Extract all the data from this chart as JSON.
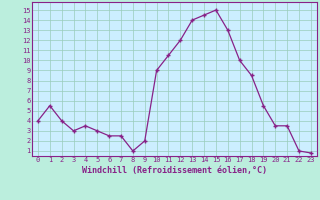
{
  "x": [
    0,
    1,
    2,
    3,
    4,
    5,
    6,
    7,
    8,
    9,
    10,
    11,
    12,
    13,
    14,
    15,
    16,
    17,
    18,
    19,
    20,
    21,
    22,
    23
  ],
  "y": [
    4.0,
    5.5,
    4.0,
    3.0,
    3.5,
    3.0,
    2.5,
    2.5,
    1.0,
    2.0,
    9.0,
    10.5,
    12.0,
    14.0,
    14.5,
    15.0,
    13.0,
    10.0,
    8.5,
    5.5,
    3.5,
    3.5,
    1.0,
    0.8
  ],
  "line_color": "#882288",
  "marker": "+",
  "bg_color": "#bbeedd",
  "xlabel": "Windchill (Refroidissement éolien,°C)",
  "ylabel_ticks": [
    1,
    2,
    3,
    4,
    5,
    6,
    7,
    8,
    9,
    10,
    11,
    12,
    13,
    14,
    15
  ],
  "ylim": [
    0.5,
    15.8
  ],
  "xlim": [
    -0.5,
    23.5
  ],
  "grid_color": "#99ccbb",
  "tick_color": "#882288",
  "label_color": "#882288",
  "axis_bg": "#cceeff"
}
